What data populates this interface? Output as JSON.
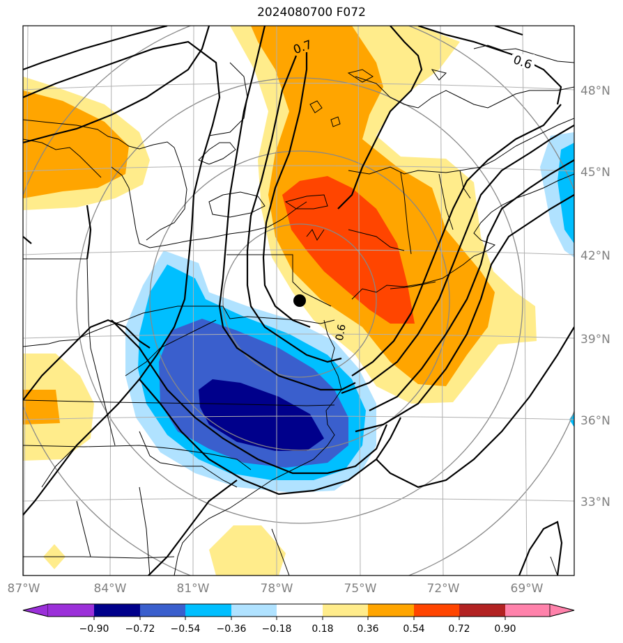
{
  "title": "2024080700 F072",
  "map": {
    "lon_labels": [
      "87°W",
      "84°W",
      "81°W",
      "78°W",
      "75°W",
      "72°W",
      "69°W"
    ],
    "lat_labels": [
      "48°N",
      "45°N",
      "42°N",
      "39°N",
      "36°N",
      "33°N"
    ],
    "contour_labels": [
      "0.7",
      "0.6",
      "0.6"
    ]
  },
  "colorbar": {
    "ticks": [
      "−0.90",
      "−0.72",
      "−0.54",
      "−0.36",
      "−0.18",
      "0.18",
      "0.36",
      "0.54",
      "0.72",
      "0.90"
    ],
    "colors": [
      "#9b30d9",
      "#00008b",
      "#3a5fcd",
      "#00bfff",
      "#b0e2ff",
      "#ffffff",
      "#ffec8b",
      "#ffa500",
      "#ff4500",
      "#b22222",
      "#ff82ab"
    ]
  },
  "colors": {
    "neg_strong": "#00008b",
    "neg_mid": "#3a5fcd",
    "neg_light": "#00bfff",
    "neg_faint": "#b0e2ff",
    "pos_faint": "#ffec8b",
    "pos_mid": "#ffa500",
    "pos_strong": "#ff4500"
  }
}
